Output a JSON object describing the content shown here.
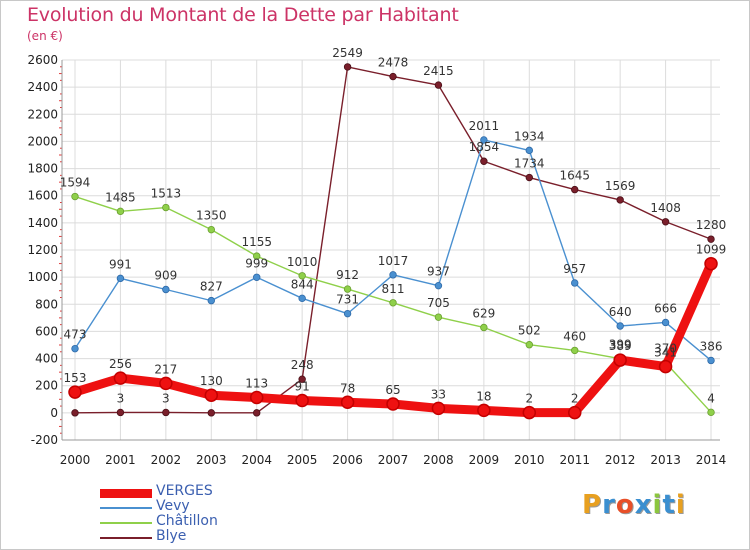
{
  "title": "Evolution du Montant de la Dette par Habitant",
  "unit": "(en €)",
  "logo": {
    "text": "Proxiti",
    "colors": [
      "#e8a020",
      "#3b8fd0",
      "#e84f28",
      "#3b8fd0",
      "#8cc63e",
      "#3b8fd0",
      "#e8a020"
    ]
  },
  "chart_data": {
    "type": "line",
    "title": "Evolution du Montant de la Dette par Habitant",
    "ylabel": "(en €)",
    "xlabel": "",
    "x": [
      "2000",
      "2001",
      "2002",
      "2003",
      "2004",
      "2005",
      "2006",
      "2007",
      "2008",
      "2009",
      "2010",
      "2011",
      "2012",
      "2013",
      "2014"
    ],
    "ylim": [
      -200,
      2600
    ],
    "yticks": [
      -200,
      0,
      200,
      400,
      600,
      800,
      1000,
      1200,
      1400,
      1600,
      1800,
      2000,
      2200,
      2400,
      2600
    ],
    "grid": true,
    "legend_position": "bottom-left",
    "series": [
      {
        "name": "Blye",
        "color": "#7a1f2b",
        "values": [
          0,
          3,
          3,
          0,
          0,
          248,
          2549,
          2478,
          2415,
          1854,
          1734,
          1645,
          1569,
          1408,
          1280
        ],
        "labels": [
          "",
          "3",
          "3",
          "",
          "",
          "248",
          "2549",
          "2478",
          "2415",
          "1854",
          "1734",
          "1645",
          "1569",
          "1408",
          "1280"
        ]
      },
      {
        "name": "Châtillon",
        "color": "#8fd04a",
        "values": [
          1594,
          1485,
          1513,
          1350,
          1155,
          1010,
          912,
          811,
          705,
          629,
          502,
          460,
          399,
          370,
          4
        ],
        "labels": [
          "1594",
          "1485",
          "1513",
          "1350",
          "1155",
          "1010",
          "912",
          "811",
          "705",
          "629",
          "502",
          "460",
          "399",
          "370",
          "4"
        ]
      },
      {
        "name": "Vevy",
        "color": "#4a90d0",
        "values": [
          473,
          991,
          909,
          827,
          999,
          844,
          731,
          1017,
          937,
          2011,
          1934,
          957,
          640,
          666,
          386
        ],
        "labels": [
          "473",
          "991",
          "909",
          "827",
          "999",
          "844",
          "731",
          "1017",
          "937",
          "2011",
          "1934",
          "957",
          "640",
          "666",
          "386"
        ]
      },
      {
        "name": "VERGES",
        "color": "#ee1111",
        "values": [
          153,
          256,
          217,
          130,
          113,
          91,
          78,
          65,
          33,
          18,
          2,
          2,
          389,
          341,
          1099
        ],
        "labels": [
          "153",
          "256",
          "217",
          "130",
          "113",
          "91",
          "78",
          "65",
          "33",
          "18",
          "2",
          "2",
          "389",
          "341",
          "1099"
        ]
      }
    ]
  },
  "legend": [
    {
      "name": "VERGES",
      "color": "#ee1111",
      "thickness": 9
    },
    {
      "name": "Vevy",
      "color": "#4a90d0",
      "thickness": 2
    },
    {
      "name": "Châtillon",
      "color": "#8fd04a",
      "thickness": 2
    },
    {
      "name": "Blye",
      "color": "#7a1f2b",
      "thickness": 2
    }
  ]
}
